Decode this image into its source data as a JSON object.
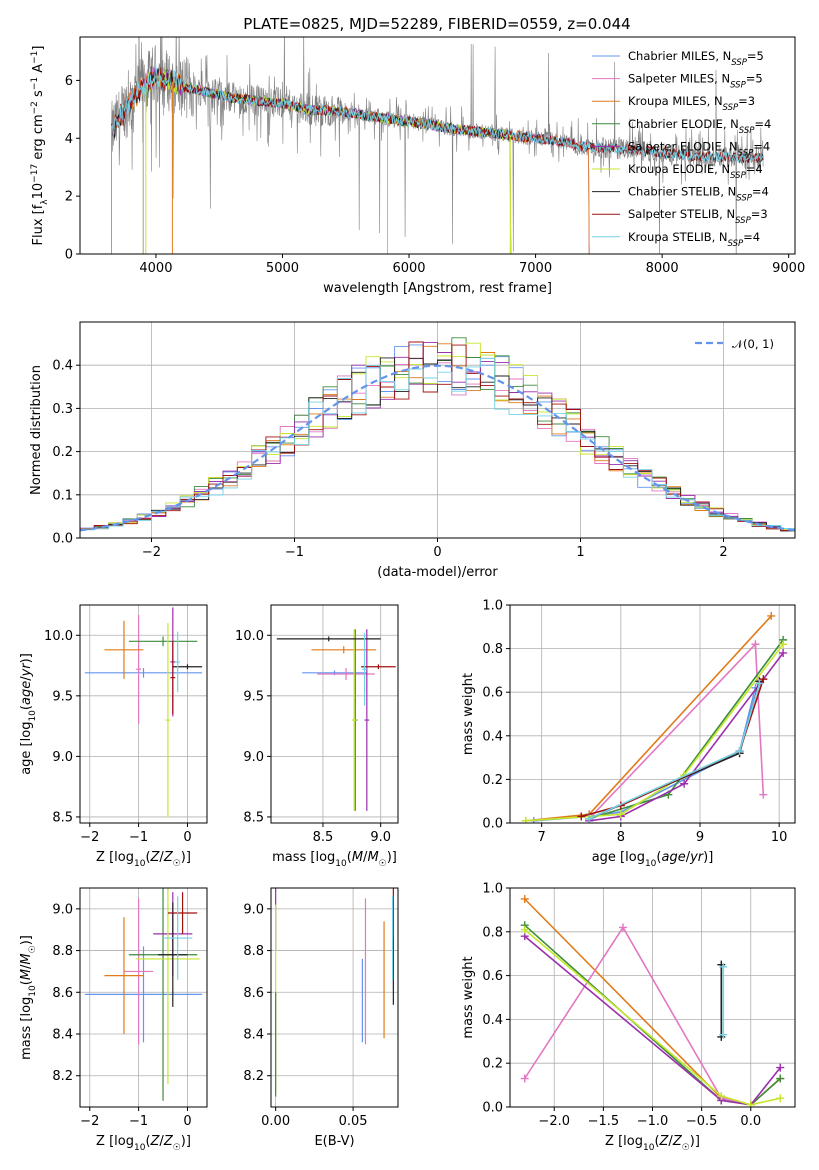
{
  "figure": {
    "title": "PLATE=0825, MJD=52289, FIBERID=0559, z=0.044"
  },
  "colors": {
    "data": "#808080",
    "Chabrier MILES": "#6495ed",
    "Salpeter MILES": "#e377c2",
    "Kroupa MILES": "#e07b1a",
    "Chabrier ELODIE": "#3c8c3c",
    "Salpeter ELODIE": "#9b2fae",
    "Kroupa ELODIE": "#c6e62e",
    "Chabrier STELIB": "#222222",
    "Salpeter STELIB": "#a01010",
    "Kroupa STELIB": "#73d2e6",
    "gaussian": "#6495ed"
  },
  "chart_data": [
    {
      "type": "line",
      "id": "spectrum",
      "title": "PLATE=0825, MJD=52289, FIBERID=0559, z=0.044",
      "xlabel": "wavelength [Angstrom, rest frame]",
      "ylabel": "Flux [f_λ 10^-17 erg cm^-2 s^-1 A^-1]",
      "xlim": [
        3400,
        9050
      ],
      "ylim": [
        0,
        7.5
      ],
      "xticks": [
        4000,
        5000,
        6000,
        7000,
        8000,
        9000
      ],
      "yticks": [
        0,
        2,
        4,
        6
      ],
      "grid": false,
      "legend_position": "top-right",
      "legend": [
        {
          "label": "Chabrier MILES, N",
          "sub": "SSP",
          "suffix": "=5",
          "key": "Chabrier MILES"
        },
        {
          "label": "Salpeter MILES, N",
          "sub": "SSP",
          "suffix": "=5",
          "key": "Salpeter MILES"
        },
        {
          "label": "Kroupa MILES, N",
          "sub": "SSP",
          "suffix": "=3",
          "key": "Kroupa MILES"
        },
        {
          "label": "Chabrier ELODIE, N",
          "sub": "SSP",
          "suffix": "=4",
          "key": "Chabrier ELODIE"
        },
        {
          "label": "Salpeter ELODIE, N",
          "sub": "SSP",
          "suffix": "=4",
          "key": "Salpeter ELODIE"
        },
        {
          "label": "Kroupa ELODIE, N",
          "sub": "SSP",
          "suffix": "=4",
          "key": "Kroupa ELODIE"
        },
        {
          "label": "Chabrier STELIB, N",
          "sub": "SSP",
          "suffix": "=4",
          "key": "Chabrier STELIB"
        },
        {
          "label": "Salpeter STELIB, N",
          "sub": "SSP",
          "suffix": "=3",
          "key": "Salpeter STELIB"
        },
        {
          "label": "Kroupa STELIB, N",
          "sub": "SSP",
          "suffix": "=4",
          "key": "Kroupa STELIB"
        }
      ],
      "continuum": {
        "x": [
          3650,
          3700,
          3800,
          3900,
          4000,
          4100,
          4200,
          4400,
          4600,
          4800,
          5000,
          5200,
          5500,
          5800,
          6100,
          6400,
          6700,
          7000,
          7200,
          7400,
          7600,
          7800,
          8000,
          8200,
          8500,
          8800
        ],
        "y": [
          4.2,
          4.6,
          5.3,
          5.8,
          6.2,
          6.0,
          5.8,
          5.6,
          5.4,
          5.3,
          5.2,
          5.0,
          4.9,
          4.7,
          4.5,
          4.3,
          4.15,
          4.0,
          3.9,
          3.7,
          3.65,
          3.6,
          3.5,
          3.4,
          3.35,
          3.3
        ]
      }
    },
    {
      "type": "line",
      "id": "residuals",
      "xlabel": "(data-model)/error",
      "ylabel": "Normed distribution",
      "xlim": [
        -2.5,
        2.5
      ],
      "ylim": [
        0,
        0.5
      ],
      "xticks": [
        -2,
        -1,
        0,
        1,
        2
      ],
      "yticks": [
        0.0,
        0.1,
        0.2,
        0.3,
        0.4
      ],
      "grid": true,
      "legend_position": "top-right",
      "legend": "𝒩(0, 1)",
      "histogram_bins": [
        -2.5,
        -2.4,
        -2.3,
        -2.2,
        -2.1,
        -2.0,
        -1.9,
        -1.8,
        -1.7,
        -1.6,
        -1.5,
        -1.4,
        -1.3,
        -1.2,
        -1.1,
        -1.0,
        -0.9,
        -0.8,
        -0.7,
        -0.6,
        -0.5,
        -0.4,
        -0.3,
        -0.2,
        -0.1,
        0.0,
        0.1,
        0.2,
        0.3,
        0.4,
        0.5,
        0.6,
        0.7,
        0.8,
        0.9,
        1.0,
        1.1,
        1.2,
        1.3,
        1.4,
        1.5,
        1.6,
        1.7,
        1.8,
        1.9,
        2.0,
        2.1,
        2.2,
        2.3,
        2.4,
        2.5
      ],
      "gaussian": {
        "mu": 0,
        "sigma": 1
      }
    },
    {
      "type": "scatter",
      "id": "age-vs-Z",
      "xlabel": "Z [log10(Z/Z☉)]",
      "ylabel": "age [log10(age/yr)]",
      "xlim": [
        -2.2,
        0.4
      ],
      "ylim": [
        8.45,
        10.25
      ],
      "xticks": [
        -2,
        -1,
        0
      ],
      "yticks": [
        8.5,
        9.0,
        9.5,
        10.0
      ],
      "grid": true,
      "errorbars": [
        {
          "key": "Chabrier MILES",
          "x": -0.9,
          "y": 9.69,
          "xerr": 1.2,
          "yerr": 0.04
        },
        {
          "key": "Salpeter MILES",
          "x": -1.0,
          "y": 9.72,
          "xerr": 0.05,
          "yerr": 0.45
        },
        {
          "key": "Kroupa MILES",
          "x": -1.3,
          "y": 9.88,
          "xerr": 0.4,
          "yerr": 0.24
        },
        {
          "key": "Chabrier ELODIE",
          "x": -0.5,
          "y": 9.95,
          "xerr": 0.7,
          "yerr": 0.04
        },
        {
          "key": "Salpeter ELODIE",
          "x": -0.3,
          "y": 9.78,
          "xerr": 0.05,
          "yerr": 0.45
        },
        {
          "key": "Kroupa ELODIE",
          "x": -0.4,
          "y": 9.3,
          "xerr": 0.05,
          "yerr": 0.8
        },
        {
          "key": "Chabrier STELIB",
          "x": 0.0,
          "y": 9.74,
          "xerr": 0.3,
          "yerr": 0.02
        },
        {
          "key": "Salpeter STELIB",
          "x": -0.3,
          "y": 9.65,
          "xerr": 0.05,
          "yerr": 0.3
        },
        {
          "key": "Kroupa STELIB",
          "x": -0.2,
          "y": 9.78,
          "xerr": 0.05,
          "yerr": 0.25
        }
      ]
    },
    {
      "type": "scatter",
      "id": "age-vs-mass",
      "xlabel": "mass [log10(M/M☉)]",
      "ylabel": "",
      "xlim": [
        8.05,
        9.15
      ],
      "ylim": [
        8.45,
        10.25
      ],
      "xticks": [
        8.5,
        9.0
      ],
      "yticks": [
        8.5,
        9.0,
        9.5,
        10.0
      ],
      "grid": true,
      "errorbars": [
        {
          "key": "Chabrier MILES",
          "x": 8.6,
          "y": 9.69,
          "xerr": 0.28,
          "yerr": 0.02
        },
        {
          "key": "Salpeter MILES",
          "x": 8.7,
          "y": 9.68,
          "xerr": 0.25,
          "yerr": 0.05
        },
        {
          "key": "Kroupa MILES",
          "x": 8.68,
          "y": 9.88,
          "xerr": 0.28,
          "yerr": 0.03
        },
        {
          "key": "Chabrier ELODIE",
          "x": 8.78,
          "y": 9.3,
          "xerr": 0.02,
          "yerr": 0.75
        },
        {
          "key": "Salpeter ELODIE",
          "x": 8.88,
          "y": 9.3,
          "xerr": 0.02,
          "yerr": 0.75
        },
        {
          "key": "Kroupa ELODIE",
          "x": 8.77,
          "y": 9.3,
          "xerr": 0.02,
          "yerr": 0.75
        },
        {
          "key": "Chabrier STELIB",
          "x": 8.55,
          "y": 9.97,
          "xerr": 0.45,
          "yerr": 0.02
        },
        {
          "key": "Salpeter STELIB",
          "x": 8.98,
          "y": 9.74,
          "xerr": 0.15,
          "yerr": 0.02
        },
        {
          "key": "Kroupa STELIB",
          "x": 8.86,
          "y": 9.72,
          "xerr": 0.02,
          "yerr": 0.3
        }
      ]
    },
    {
      "type": "line",
      "id": "massweight-vs-age",
      "xlabel": "age log10(age/yr)",
      "ylabel": "mass weight",
      "xlim": [
        6.6,
        10.2
      ],
      "ylim": [
        0,
        1.0
      ],
      "xticks": [
        7,
        8,
        9,
        10
      ],
      "yticks": [
        0.0,
        0.2,
        0.4,
        0.6,
        0.8,
        1.0
      ],
      "grid": true,
      "series": [
        {
          "key": "Kroupa MILES",
          "x": [
            6.8,
            7.6,
            9.9
          ],
          "y": [
            0.01,
            0.04,
            0.95
          ]
        },
        {
          "key": "Chabrier MILES",
          "x": [
            6.9,
            7.6,
            8.0,
            9.5,
            9.7
          ],
          "y": [
            0.01,
            0.03,
            0.05,
            0.33,
            0.62
          ]
        },
        {
          "key": "Salpeter MILES",
          "x": [
            7.6,
            9.7,
            9.8
          ],
          "y": [
            0.02,
            0.82,
            0.13
          ]
        },
        {
          "key": "Chabrier ELODIE",
          "x": [
            7.6,
            8.6,
            10.05
          ],
          "y": [
            0.02,
            0.13,
            0.84
          ]
        },
        {
          "key": "Salpeter ELODIE",
          "x": [
            7.6,
            8.0,
            8.8,
            10.05
          ],
          "y": [
            0.01,
            0.03,
            0.18,
            0.78
          ]
        },
        {
          "key": "Kroupa ELODIE",
          "x": [
            6.8,
            8.0,
            8.8,
            10.05
          ],
          "y": [
            0.01,
            0.04,
            0.22,
            0.82
          ]
        },
        {
          "key": "Chabrier STELIB",
          "x": [
            7.6,
            9.5,
            9.75
          ],
          "y": [
            0.02,
            0.32,
            0.65
          ]
        },
        {
          "key": "Salpeter STELIB",
          "x": [
            7.5,
            8.0,
            9.5,
            9.8
          ],
          "y": [
            0.03,
            0.08,
            0.33,
            0.66
          ]
        },
        {
          "key": "Kroupa STELIB",
          "x": [
            7.6,
            9.5,
            9.75
          ],
          "y": [
            0.02,
            0.33,
            0.64
          ]
        }
      ]
    },
    {
      "type": "scatter",
      "id": "mass-vs-Z",
      "xlabel": "Z [log10(Z/Z☉)]",
      "ylabel": "mass [log10(M/M☉)]",
      "xlim": [
        -2.2,
        0.4
      ],
      "ylim": [
        8.05,
        9.1
      ],
      "xticks": [
        -2,
        -1,
        0
      ],
      "yticks": [
        8.2,
        8.4,
        8.6,
        8.8,
        9.0
      ],
      "grid": true,
      "errorbars": [
        {
          "key": "Chabrier MILES",
          "x": -0.9,
          "y": 8.59,
          "xerr": 1.2,
          "yerr": 0.23
        },
        {
          "key": "Salpeter MILES",
          "x": -1.0,
          "y": 8.7,
          "xerr": 0.3,
          "yerr": 0.35
        },
        {
          "key": "Kroupa MILES",
          "x": -1.3,
          "y": 8.68,
          "xerr": 0.4,
          "yerr": 0.28
        },
        {
          "key": "Chabrier ELODIE",
          "x": -0.5,
          "y": 8.78,
          "xerr": 0.7,
          "yerr": 0.7
        },
        {
          "key": "Salpeter ELODIE",
          "x": -0.3,
          "y": 8.88,
          "xerr": 0.4,
          "yerr": 0.2
        },
        {
          "key": "Kroupa ELODIE",
          "x": -0.4,
          "y": 8.76,
          "xerr": 0.65,
          "yerr": 0.6
        },
        {
          "key": "Chabrier STELIB",
          "x": -0.3,
          "y": 8.78,
          "xerr": 0.3,
          "yerr": 0.25
        },
        {
          "key": "Salpeter STELIB",
          "x": -0.1,
          "y": 8.98,
          "xerr": 0.3,
          "yerr": 0.1
        },
        {
          "key": "Kroupa STELIB",
          "x": -0.2,
          "y": 8.86,
          "xerr": 0.3,
          "yerr": 0.2
        }
      ]
    },
    {
      "type": "scatter",
      "id": "mass-vs-ebv",
      "xlabel": "E(B-V)",
      "ylabel": "",
      "xlim": [
        -0.003,
        0.079
      ],
      "ylim": [
        8.05,
        9.1
      ],
      "xticks": [
        0.0,
        0.05
      ],
      "yticks": [
        8.2,
        8.4,
        8.6,
        8.8,
        9.0
      ],
      "grid": true,
      "errorbars": [
        {
          "key": "Salpeter ELODIE",
          "x": 0.0,
          "y": 8.95,
          "yerr": 0.15
        },
        {
          "key": "Kroupa ELODIE",
          "x": 0.0,
          "y": 8.57,
          "yerr": 0.45
        },
        {
          "key": "Chabrier ELODIE",
          "x": 0.0,
          "y": 8.35,
          "yerr": 0.25
        },
        {
          "key": "Chabrier MILES",
          "x": 0.056,
          "y": 8.56,
          "yerr": 0.2
        },
        {
          "key": "Salpeter MILES",
          "x": 0.058,
          "y": 8.7,
          "yerr": 0.35
        },
        {
          "key": "Kroupa MILES",
          "x": 0.07,
          "y": 8.66,
          "yerr": 0.28
        },
        {
          "key": "Chabrier STELIB",
          "x": 0.076,
          "y": 8.79,
          "yerr": 0.25
        },
        {
          "key": "Salpeter STELIB",
          "x": 0.076,
          "y": 8.98,
          "yerr": 0.12
        },
        {
          "key": "Kroupa STELIB",
          "x": 0.0755,
          "y": 8.86,
          "yerr": 0.2
        }
      ]
    },
    {
      "type": "line",
      "id": "massweight-vs-Z",
      "xlabel": "Z [log10(Z/Z☉)]",
      "ylabel": "mass weight",
      "xlim": [
        -2.45,
        0.45
      ],
      "ylim": [
        0,
        1.0
      ],
      "xticks": [
        -2.0,
        -1.5,
        -1.0,
        -0.5,
        0.0
      ],
      "yticks": [
        0.0,
        0.2,
        0.4,
        0.6,
        0.8,
        1.0
      ],
      "grid": true,
      "series": [
        {
          "key": "Kroupa MILES",
          "x": [
            -2.3,
            -0.3,
            0.0,
            0.3
          ],
          "y": [
            0.95,
            0.04,
            0.01,
            0.13
          ]
        },
        {
          "key": "Salpeter MILES",
          "x": [
            -2.3,
            -1.3,
            -0.3,
            0.0
          ],
          "y": [
            0.13,
            0.82,
            0.04,
            0.01
          ]
        },
        {
          "key": "Chabrier ELODIE",
          "x": [
            -2.3,
            -0.3,
            0.0,
            0.3
          ],
          "y": [
            0.83,
            0.03,
            0.01,
            0.13
          ]
        },
        {
          "key": "Salpeter ELODIE",
          "x": [
            -2.3,
            -0.3,
            0.0,
            0.3
          ],
          "y": [
            0.78,
            0.03,
            0.01,
            0.18
          ]
        },
        {
          "key": "Kroupa ELODIE",
          "x": [
            -2.3,
            -0.3,
            0.0,
            0.3
          ],
          "y": [
            0.81,
            0.05,
            0.01,
            0.04
          ]
        },
        {
          "key": "Chabrier STELIB",
          "x": [
            -0.3,
            -0.3
          ],
          "y": [
            0.32,
            0.65
          ]
        },
        {
          "key": "Kroupa STELIB",
          "x": [
            -0.28,
            -0.28
          ],
          "y": [
            0.33,
            0.64
          ]
        }
      ]
    }
  ]
}
